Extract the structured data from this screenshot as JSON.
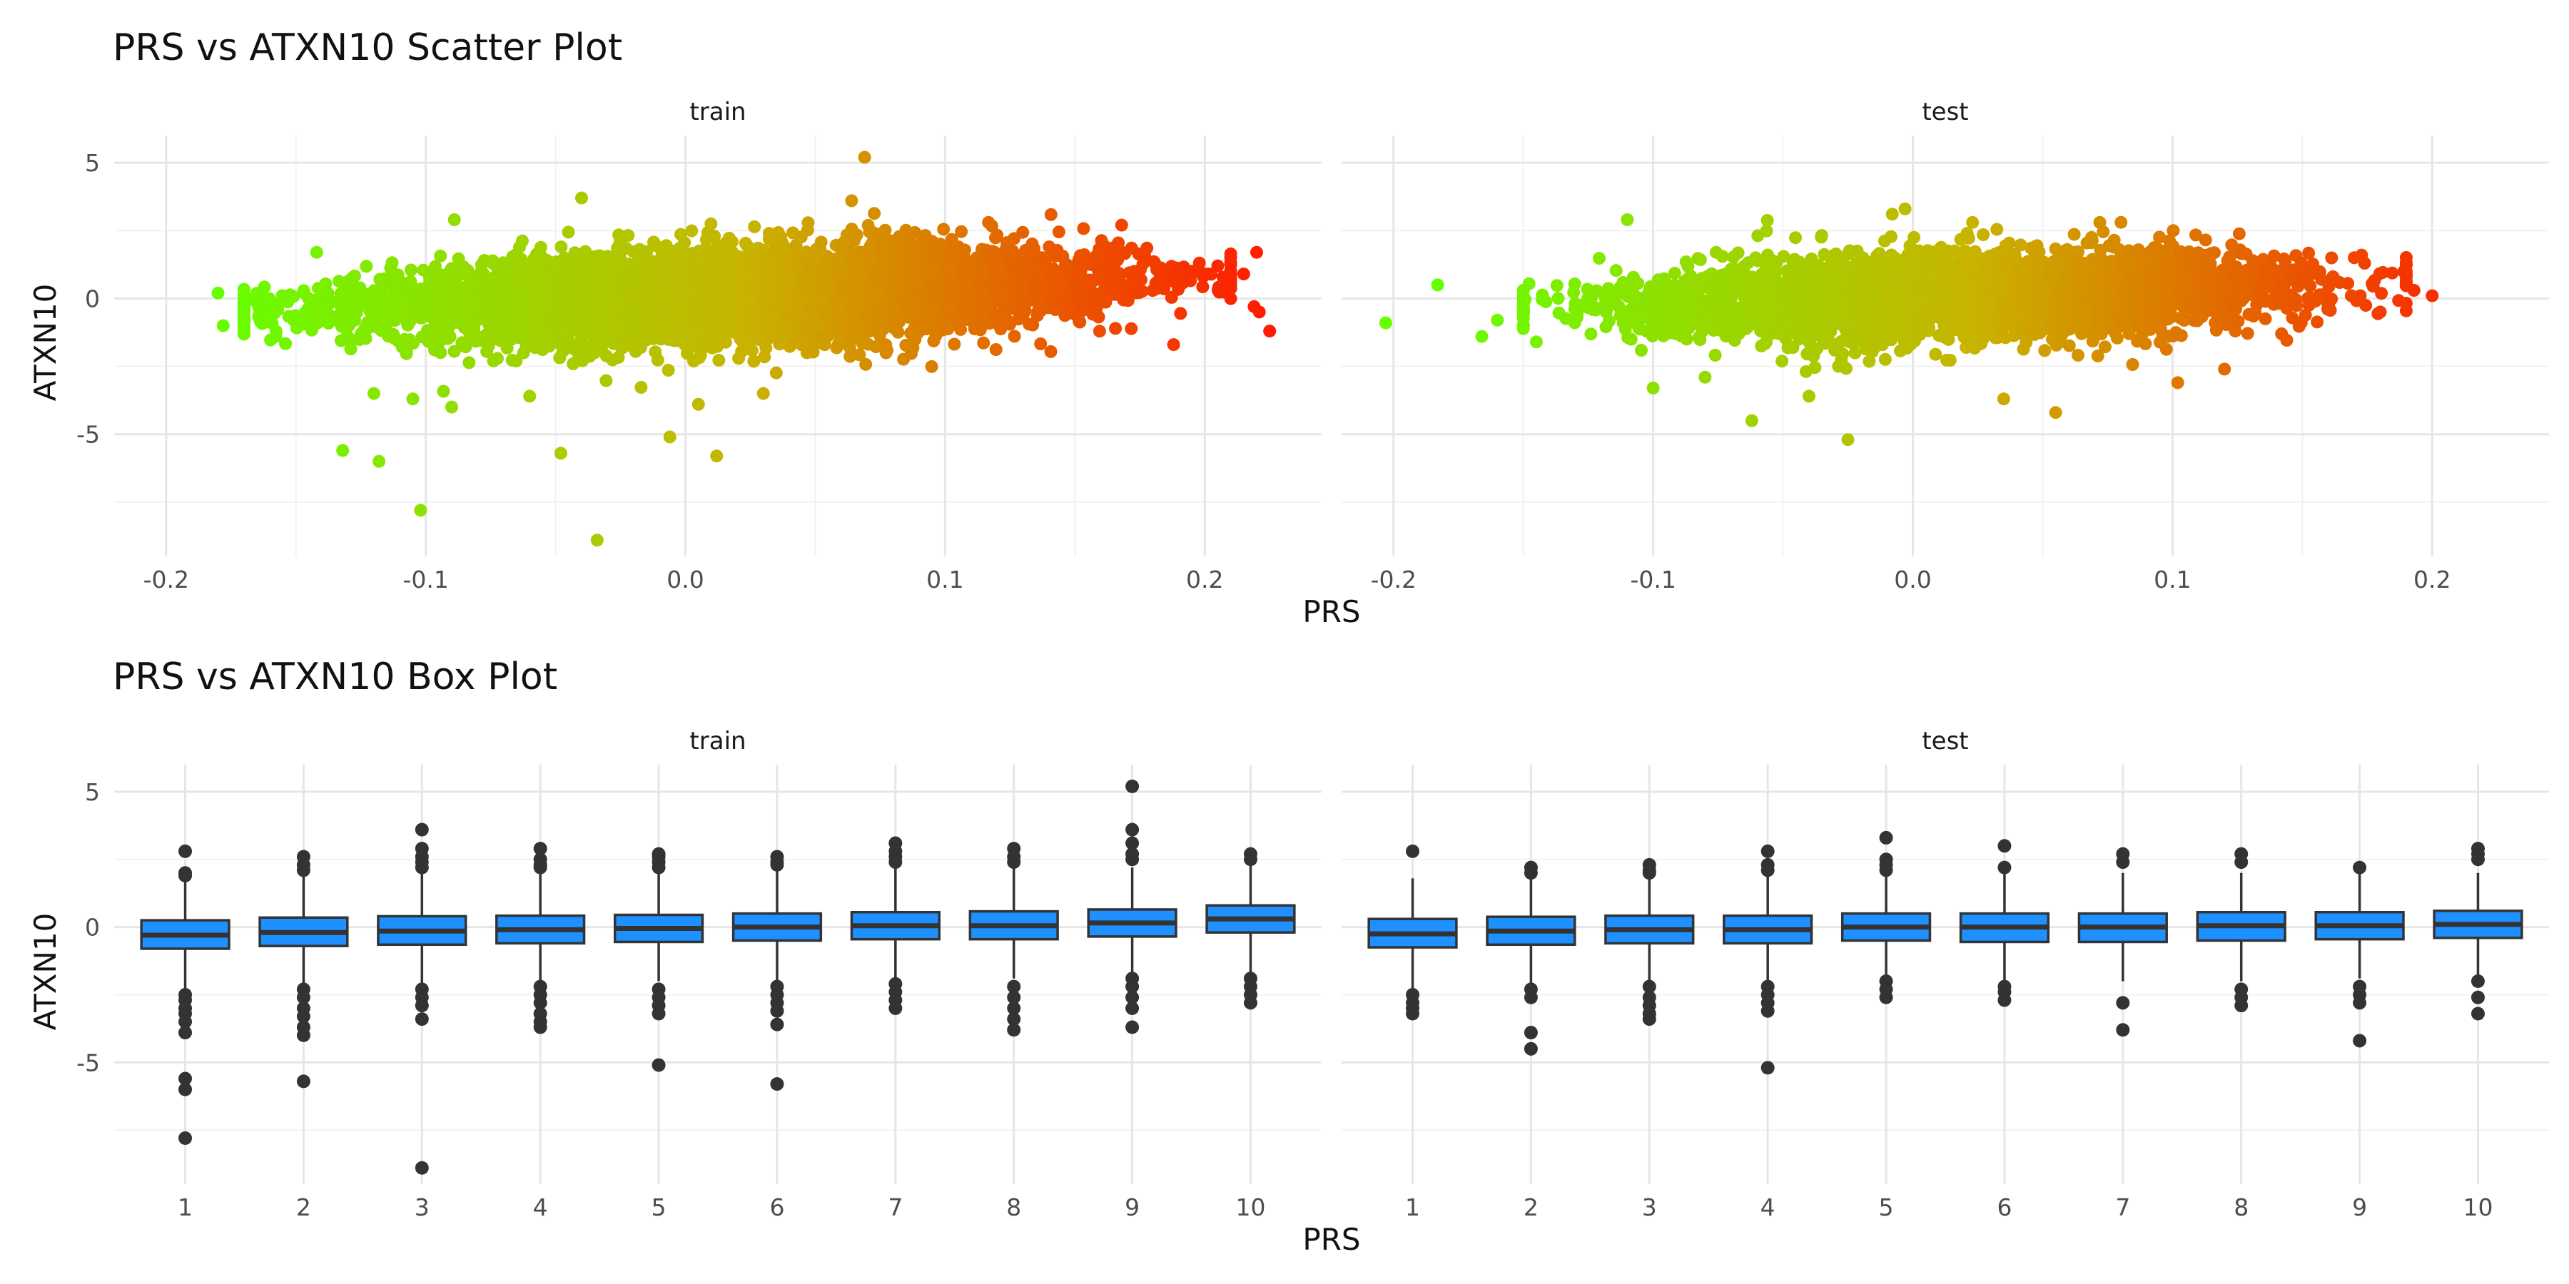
{
  "chart_data": [
    {
      "type": "scatter",
      "title": "PRS vs ATXN10 Scatter Plot",
      "xlabel": "PRS",
      "ylabel": "ATXN10",
      "facets": [
        "train",
        "test"
      ],
      "xlim": [
        -0.22,
        0.245
      ],
      "ylim": [
        -9.5,
        6.0
      ],
      "x_ticks": [
        -0.2,
        -0.1,
        0.0,
        0.1,
        0.2
      ],
      "x_tick_labels": [
        "-0.2",
        "-0.1",
        "0.0",
        "0.1",
        "0.2"
      ],
      "y_ticks": [
        5,
        0,
        -5
      ],
      "y_tick_labels": [
        "5",
        "0",
        "-5"
      ],
      "grid": true,
      "color_scale": {
        "low": "#66ff00",
        "mid": "#c8b400",
        "high": "#ff1a00",
        "mapped_to": "PRS"
      },
      "series": [
        {
          "facet": "train",
          "points": [
            [
              -0.18,
              0.2
            ],
            [
              -0.178,
              -1.0
            ],
            [
              -0.142,
              1.7
            ],
            [
              -0.132,
              -5.6
            ],
            [
              -0.118,
              -6.0
            ],
            [
              -0.102,
              -7.8
            ],
            [
              -0.089,
              2.9
            ],
            [
              -0.04,
              3.7
            ],
            [
              -0.034,
              -8.9
            ],
            [
              -0.048,
              -5.7
            ],
            [
              -0.006,
              -5.1
            ],
            [
              0.012,
              -5.8
            ],
            [
              0.069,
              5.2
            ],
            [
              0.064,
              3.6
            ],
            [
              0.168,
              2.7
            ],
            [
              0.188,
              -1.7
            ],
            [
              0.205,
              1.2
            ],
            [
              0.22,
              1.7
            ],
            [
              0.219,
              -0.3
            ],
            [
              0.221,
              -0.5
            ],
            [
              0.225,
              -1.2
            ],
            [
              0.215,
              0.9
            ],
            [
              -0.12,
              -3.5
            ],
            [
              -0.105,
              -3.7
            ],
            [
              -0.09,
              -4.0
            ],
            [
              -0.06,
              -3.6
            ],
            [
              0.005,
              -3.9
            ],
            [
              0.03,
              -3.5
            ]
          ],
          "cloud": {
            "x_range": [
              -0.17,
              0.21
            ],
            "y_mean": [
              -0.5,
              0.8
            ],
            "y_spread": 1.1
          }
        },
        {
          "facet": "test",
          "points": [
            [
              -0.203,
              -0.9
            ],
            [
              -0.183,
              0.5
            ],
            [
              -0.166,
              -1.4
            ],
            [
              -0.16,
              -0.8
            ],
            [
              -0.145,
              -1.6
            ],
            [
              -0.11,
              2.9
            ],
            [
              -0.062,
              -4.5
            ],
            [
              -0.025,
              -5.2
            ],
            [
              0.055,
              -4.2
            ],
            [
              -0.003,
              3.3
            ],
            [
              0.023,
              2.8
            ],
            [
              0.072,
              2.8
            ],
            [
              0.102,
              -3.1
            ],
            [
              0.142,
              -1.3
            ],
            [
              0.2,
              0.1
            ],
            [
              0.193,
              0.3
            ],
            [
              0.17,
              1.5
            ],
            [
              0.12,
              -2.6
            ],
            [
              -0.1,
              -3.3
            ],
            [
              -0.08,
              -2.9
            ],
            [
              0.035,
              -3.7
            ],
            [
              -0.04,
              -3.6
            ],
            [
              0.18,
              -0.5
            ]
          ],
          "cloud": {
            "x_range": [
              -0.15,
              0.19
            ],
            "y_mean": [
              -0.4,
              0.6
            ],
            "y_spread": 1.05
          }
        }
      ]
    },
    {
      "type": "box",
      "title": "PRS vs ATXN10 Box Plot",
      "xlabel": "PRS",
      "ylabel": "ATXN10",
      "facets": [
        "train",
        "test"
      ],
      "categories": [
        "1",
        "2",
        "3",
        "4",
        "5",
        "6",
        "7",
        "8",
        "9",
        "10"
      ],
      "ylim": [
        -9.5,
        6.0
      ],
      "y_ticks": [
        5,
        0,
        -5
      ],
      "y_tick_labels": [
        "5",
        "0",
        "-5"
      ],
      "grid": true,
      "box_fill": "#1e90ff",
      "series": [
        {
          "facet": "train",
          "boxes": [
            {
              "q1": -0.8,
              "median": -0.3,
              "q3": 0.25,
              "whisker_low": -2.4,
              "whisker_high": 1.8,
              "outliers": [
                2.8,
                2.0,
                1.9,
                -2.5,
                -2.7,
                -3.0,
                -3.2,
                -3.5,
                -3.9,
                -5.6,
                -6.0,
                -7.8
              ]
            },
            {
              "q1": -0.7,
              "median": -0.2,
              "q3": 0.35,
              "whisker_low": -2.2,
              "whisker_high": 1.9,
              "outliers": [
                2.6,
                2.3,
                2.1,
                -2.3,
                -2.6,
                -3.0,
                -3.3,
                -3.7,
                -4.0,
                -5.7
              ]
            },
            {
              "q1": -0.65,
              "median": -0.15,
              "q3": 0.4,
              "whisker_low": -2.1,
              "whisker_high": 2.0,
              "outliers": [
                3.6,
                2.9,
                2.6,
                2.4,
                2.2,
                -2.3,
                -2.6,
                -2.9,
                -3.4,
                -8.9
              ]
            },
            {
              "q1": -0.6,
              "median": -0.1,
              "q3": 0.42,
              "whisker_low": -2.1,
              "whisker_high": 2.0,
              "outliers": [
                2.9,
                2.5,
                2.3,
                2.2,
                -2.2,
                -2.5,
                -2.8,
                -3.2,
                -3.5,
                -3.7
              ]
            },
            {
              "q1": -0.55,
              "median": -0.05,
              "q3": 0.45,
              "whisker_low": -2.0,
              "whisker_high": 2.1,
              "outliers": [
                2.7,
                2.6,
                2.4,
                2.2,
                -2.3,
                -2.6,
                -2.9,
                -3.2,
                -5.1
              ]
            },
            {
              "q1": -0.5,
              "median": 0.0,
              "q3": 0.5,
              "whisker_low": -2.0,
              "whisker_high": 2.1,
              "outliers": [
                2.6,
                2.4,
                2.3,
                -2.2,
                -2.5,
                -2.8,
                -3.1,
                -3.6,
                -5.8
              ]
            },
            {
              "q1": -0.45,
              "median": 0.05,
              "q3": 0.55,
              "whisker_low": -1.9,
              "whisker_high": 2.2,
              "outliers": [
                3.1,
                2.8,
                2.6,
                2.4,
                -2.1,
                -2.4,
                -2.7,
                -3.0
              ]
            },
            {
              "q1": -0.45,
              "median": 0.05,
              "q3": 0.58,
              "whisker_low": -1.9,
              "whisker_high": 2.2,
              "outliers": [
                2.9,
                2.6,
                2.4,
                -2.2,
                -2.6,
                -3.0,
                -3.4,
                -3.8
              ]
            },
            {
              "q1": -0.35,
              "median": 0.15,
              "q3": 0.65,
              "whisker_low": -1.8,
              "whisker_high": 2.2,
              "outliers": [
                5.2,
                3.6,
                3.1,
                2.7,
                2.5,
                -1.9,
                -2.2,
                -2.6,
                -3.0,
                -3.7
              ]
            },
            {
              "q1": -0.2,
              "median": 0.3,
              "q3": 0.8,
              "whisker_low": -1.7,
              "whisker_high": 2.3,
              "outliers": [
                2.7,
                2.5,
                -1.9,
                -2.2,
                -2.5,
                -2.8
              ]
            }
          ]
        },
        {
          "facet": "test",
          "boxes": [
            {
              "q1": -0.75,
              "median": -0.25,
              "q3": 0.3,
              "whisker_low": -2.3,
              "whisker_high": 1.8,
              "outliers": [
                2.8,
                -2.5,
                -2.8,
                -3.0,
                -3.2
              ]
            },
            {
              "q1": -0.65,
              "median": -0.15,
              "q3": 0.38,
              "whisker_low": -2.1,
              "whisker_high": 1.9,
              "outliers": [
                2.2,
                2.0,
                -2.3,
                -2.6,
                -3.9,
                -4.5
              ]
            },
            {
              "q1": -0.6,
              "median": -0.1,
              "q3": 0.42,
              "whisker_low": -2.1,
              "whisker_high": 1.9,
              "outliers": [
                2.3,
                2.1,
                2.0,
                -2.2,
                -2.6,
                -2.9,
                -3.2,
                -3.4
              ]
            },
            {
              "q1": -0.6,
              "median": -0.1,
              "q3": 0.42,
              "whisker_low": -2.1,
              "whisker_high": 1.9,
              "outliers": [
                2.8,
                2.3,
                2.1,
                -2.2,
                -2.5,
                -2.8,
                -3.1,
                -5.2
              ]
            },
            {
              "q1": -0.5,
              "median": 0.0,
              "q3": 0.5,
              "whisker_low": -1.9,
              "whisker_high": 2.0,
              "outliers": [
                3.3,
                2.5,
                2.3,
                2.1,
                -2.0,
                -2.3,
                -2.6
              ]
            },
            {
              "q1": -0.55,
              "median": 0.0,
              "q3": 0.5,
              "whisker_low": -2.0,
              "whisker_high": 2.0,
              "outliers": [
                3.0,
                2.2,
                -2.2,
                -2.4,
                -2.7
              ]
            },
            {
              "q1": -0.55,
              "median": 0.0,
              "q3": 0.5,
              "whisker_low": -2.0,
              "whisker_high": 2.0,
              "outliers": [
                2.7,
                2.4,
                -2.8,
                -3.8
              ]
            },
            {
              "q1": -0.5,
              "median": 0.05,
              "q3": 0.55,
              "whisker_low": -2.0,
              "whisker_high": 2.0,
              "outliers": [
                2.7,
                2.4,
                -2.3,
                -2.6,
                -2.9
              ]
            },
            {
              "q1": -0.45,
              "median": 0.05,
              "q3": 0.55,
              "whisker_low": -1.9,
              "whisker_high": 2.0,
              "outliers": [
                2.2,
                -2.2,
                -2.5,
                -2.8,
                -4.2
              ]
            },
            {
              "q1": -0.4,
              "median": 0.1,
              "q3": 0.6,
              "whisker_low": -1.9,
              "whisker_high": 2.0,
              "outliers": [
                2.9,
                2.7,
                2.5,
                -2.0,
                -2.6,
                -3.2
              ]
            }
          ]
        }
      ]
    }
  ]
}
